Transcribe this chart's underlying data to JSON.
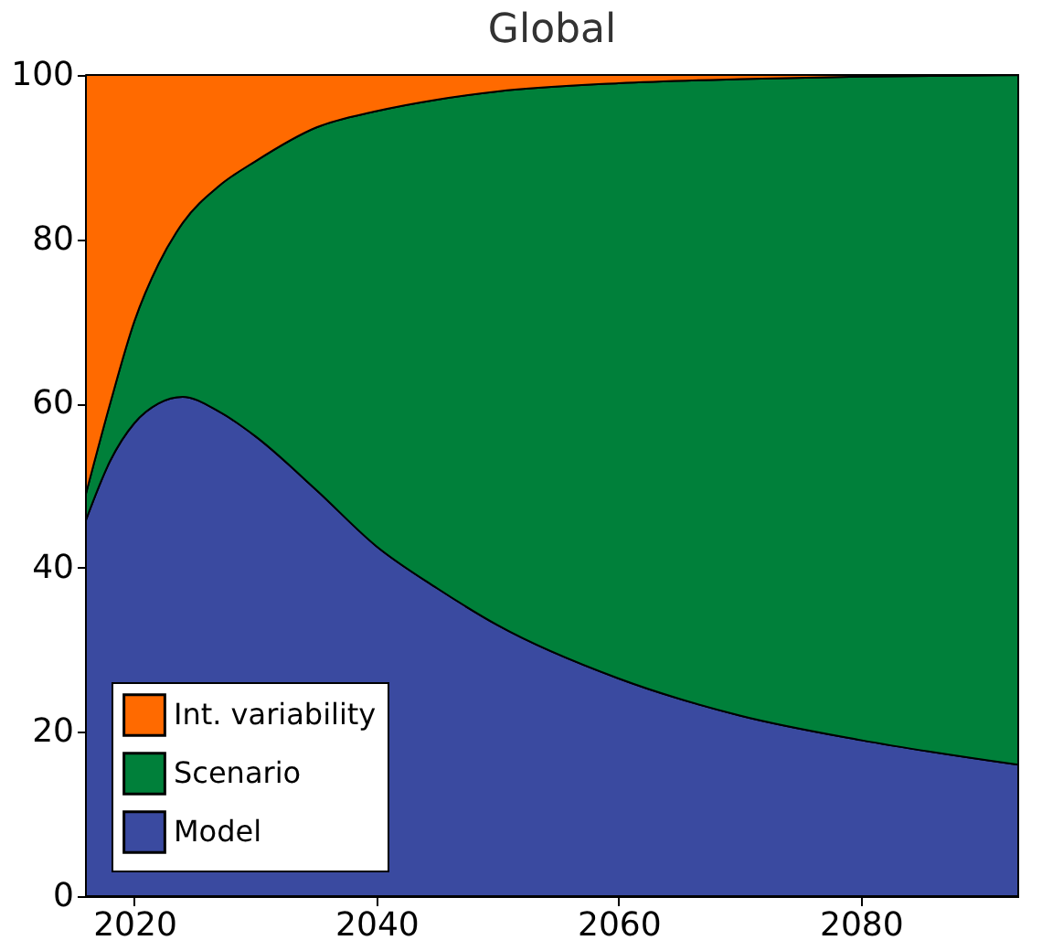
{
  "chart_data": {
    "type": "area",
    "title": "Global",
    "stacked": true,
    "x": [
      2016,
      2018,
      2020,
      2022,
      2024,
      2027,
      2030,
      2035,
      2040,
      2045,
      2050,
      2060,
      2070,
      2080,
      2093
    ],
    "series": [
      {
        "name": "Model",
        "color": "#3a4aa0",
        "values": [
          45.8,
          53,
          57.6,
          60,
          60.8,
          59,
          56,
          49.5,
          42.6,
          37.5,
          33,
          26.5,
          22,
          19,
          16
        ]
      },
      {
        "name": "Scenario",
        "color": "#00803a",
        "values": [
          3.2,
          7,
          12.4,
          17,
          21.2,
          27.5,
          33.5,
          44.1,
          53,
          59.5,
          65,
          72.5,
          77.5,
          80.8,
          84
        ]
      },
      {
        "name": "Int. variability",
        "color": "#ff6a00",
        "values": [
          51,
          40,
          30,
          23,
          18,
          13.5,
          10.5,
          6.4,
          4.4,
          3,
          2,
          1,
          0.5,
          0.2,
          0
        ]
      }
    ],
    "xlim": [
      2016,
      2093
    ],
    "xticks": [
      2020,
      2040,
      2060,
      2080
    ],
    "ylim": [
      0,
      100
    ],
    "yticks": [
      0,
      20,
      40,
      60,
      80,
      100
    ],
    "legend": "bottom left"
  }
}
